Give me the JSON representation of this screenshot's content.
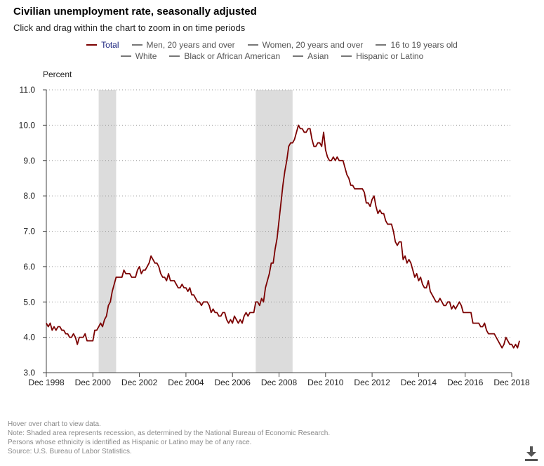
{
  "header": {
    "title": "Civilian unemployment rate, seasonally adjusted",
    "subtitle": "Click and drag within the chart to zoom in on time periods"
  },
  "legend": {
    "row1": [
      {
        "label": "Total",
        "color": "#7b0000",
        "active": true
      },
      {
        "label": "Men, 20 years and over",
        "color": "#888888",
        "active": false
      },
      {
        "label": "Women, 20 years and over",
        "color": "#888888",
        "active": false
      },
      {
        "label": "16 to 19 years old",
        "color": "#888888",
        "active": false
      }
    ],
    "row2": [
      {
        "label": "White",
        "color": "#888888",
        "active": false
      },
      {
        "label": "Black or African American",
        "color": "#888888",
        "active": false
      },
      {
        "label": "Asian",
        "color": "#888888",
        "active": false
      },
      {
        "label": "Hispanic or Latino",
        "color": "#888888",
        "active": false
      }
    ]
  },
  "notes": [
    "Hover over chart to view data.",
    "Note: Shaded area represents recession, as determined by the National Bureau of Economic Research.",
    "Persons whose ethnicity is identified as Hispanic or Latino may be of any race.",
    "Source: U.S. Bureau of Labor Statistics."
  ],
  "icons": {
    "download": "download-icon"
  },
  "chart_data": {
    "type": "line",
    "ylabel": "Percent",
    "ylim": [
      3.0,
      11.0
    ],
    "yticks": [
      "3.0",
      "4.0",
      "5.0",
      "6.0",
      "7.0",
      "8.0",
      "9.0",
      "10.0",
      "11.0"
    ],
    "xrange": [
      "1998-12",
      "2018-12"
    ],
    "xticks": [
      {
        "label": "Dec 1998",
        "date": "1998-12"
      },
      {
        "label": "Dec 2000",
        "date": "2000-12"
      },
      {
        "label": "Dec 2002",
        "date": "2002-12"
      },
      {
        "label": "Dec 2004",
        "date": "2004-12"
      },
      {
        "label": "Dec 2006",
        "date": "2006-12"
      },
      {
        "label": "Dec 2008",
        "date": "2008-12"
      },
      {
        "label": "Dec 2010",
        "date": "2010-12"
      },
      {
        "label": "Dec 2012",
        "date": "2012-12"
      },
      {
        "label": "Dec 2014",
        "date": "2014-12"
      },
      {
        "label": "Dec 2016",
        "date": "2016-12"
      },
      {
        "label": "Dec 2018",
        "date": "2018-12"
      }
    ],
    "grid": "horizontal-dotted",
    "recessions": [
      {
        "start": "2001-03",
        "end": "2001-11"
      },
      {
        "start": "2007-12",
        "end": "2009-06"
      }
    ],
    "series": [
      {
        "name": "Total",
        "color": "#7b0000",
        "start": "1998-12",
        "values": [
          4.4,
          4.3,
          4.4,
          4.2,
          4.3,
          4.2,
          4.3,
          4.3,
          4.2,
          4.2,
          4.1,
          4.1,
          4.0,
          4.0,
          4.1,
          4.0,
          3.8,
          4.0,
          4.0,
          4.0,
          4.1,
          3.9,
          3.9,
          3.9,
          3.9,
          4.2,
          4.2,
          4.3,
          4.4,
          4.3,
          4.5,
          4.6,
          4.9,
          5.0,
          5.3,
          5.5,
          5.7,
          5.7,
          5.7,
          5.7,
          5.9,
          5.8,
          5.8,
          5.8,
          5.7,
          5.7,
          5.7,
          5.9,
          6.0,
          5.8,
          5.9,
          5.9,
          6.0,
          6.1,
          6.3,
          6.2,
          6.1,
          6.1,
          6.0,
          5.8,
          5.7,
          5.7,
          5.6,
          5.8,
          5.6,
          5.6,
          5.6,
          5.5,
          5.4,
          5.4,
          5.5,
          5.4,
          5.4,
          5.3,
          5.4,
          5.2,
          5.2,
          5.1,
          5.0,
          5.0,
          4.9,
          5.0,
          5.0,
          5.0,
          4.9,
          4.7,
          4.8,
          4.7,
          4.7,
          4.6,
          4.6,
          4.7,
          4.7,
          4.5,
          4.4,
          4.5,
          4.4,
          4.6,
          4.5,
          4.4,
          4.5,
          4.4,
          4.6,
          4.7,
          4.6,
          4.7,
          4.7,
          4.7,
          5.0,
          5.0,
          4.9,
          5.1,
          5.0,
          5.4,
          5.6,
          5.8,
          6.1,
          6.1,
          6.5,
          6.8,
          7.3,
          7.8,
          8.3,
          8.7,
          9.0,
          9.4,
          9.5,
          9.5,
          9.6,
          9.8,
          10.0,
          9.9,
          9.9,
          9.8,
          9.8,
          9.9,
          9.9,
          9.6,
          9.4,
          9.4,
          9.5,
          9.5,
          9.4,
          9.8,
          9.3,
          9.1,
          9.0,
          9.0,
          9.1,
          9.0,
          9.1,
          9.0,
          9.0,
          9.0,
          8.8,
          8.6,
          8.5,
          8.3,
          8.3,
          8.2,
          8.2,
          8.2,
          8.2,
          8.2,
          8.1,
          7.8,
          7.8,
          7.7,
          7.9,
          8.0,
          7.7,
          7.5,
          7.6,
          7.5,
          7.5,
          7.3,
          7.2,
          7.2,
          7.2,
          7.0,
          6.7,
          6.6,
          6.7,
          6.7,
          6.2,
          6.3,
          6.1,
          6.2,
          6.1,
          5.9,
          5.7,
          5.8,
          5.6,
          5.7,
          5.5,
          5.4,
          5.4,
          5.6,
          5.3,
          5.2,
          5.1,
          5.0,
          5.0,
          5.1,
          5.0,
          4.9,
          4.9,
          5.0,
          5.0,
          4.8,
          4.9,
          4.8,
          4.9,
          5.0,
          4.9,
          4.7,
          4.7,
          4.7,
          4.7,
          4.7,
          4.4,
          4.4,
          4.4,
          4.4,
          4.3,
          4.3,
          4.4,
          4.2,
          4.1,
          4.1,
          4.1,
          4.1,
          4.0,
          3.9,
          3.8,
          3.7,
          3.8,
          4.0,
          3.9,
          3.8,
          3.8,
          3.7,
          3.8,
          3.7,
          3.9
        ]
      }
    ]
  }
}
